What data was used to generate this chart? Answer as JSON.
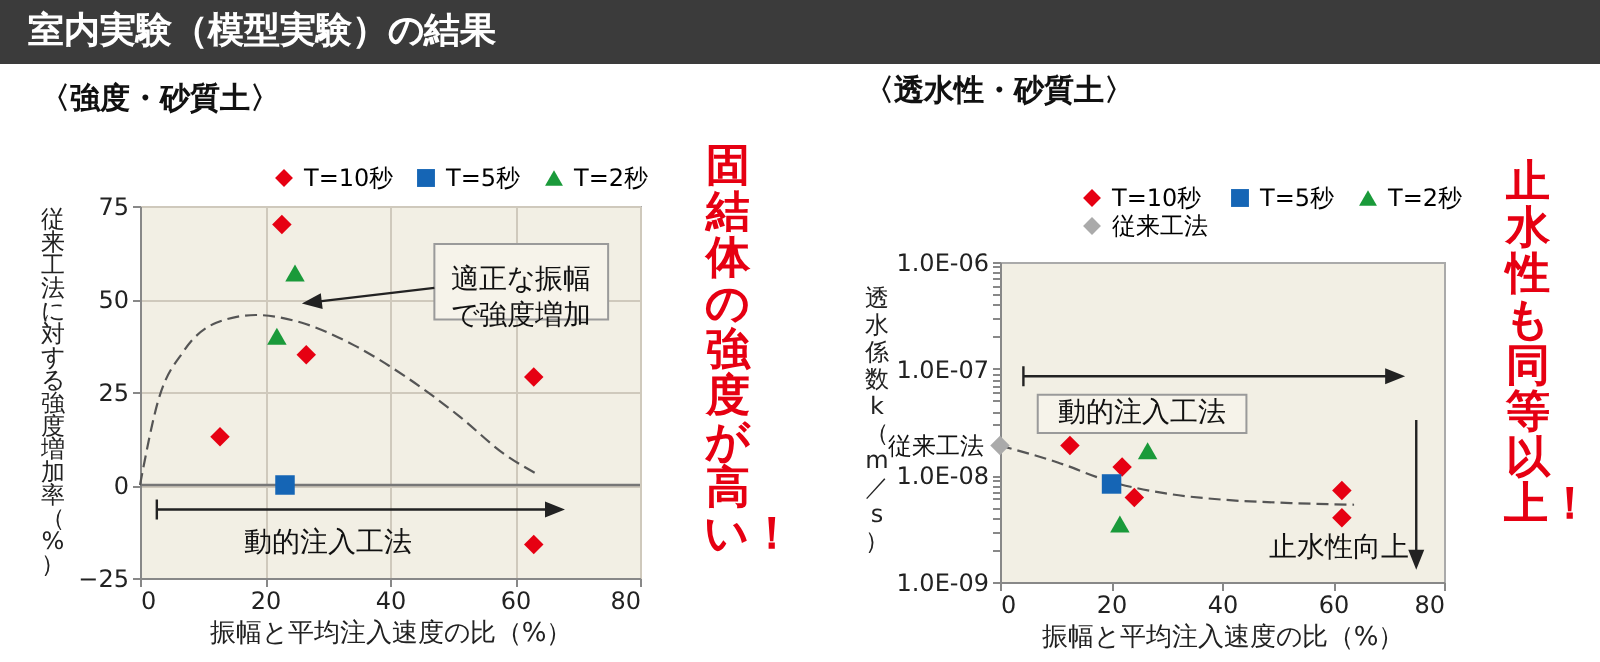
{
  "chart_data": [
    {
      "type": "scatter",
      "title": "室内実験（模型実験）の結果",
      "subtitle": "〈強度・砂質土〉",
      "xlabel": "振幅と平均注入速度の比（%）",
      "ylabel": "従来工法に対する強度増加率（%）",
      "xlim": [
        0,
        80
      ],
      "ylim": [
        -25,
        75
      ],
      "xticks": [
        0,
        20,
        40,
        60,
        80
      ],
      "yticks": [
        -25,
        0,
        25,
        50,
        75
      ],
      "grid": true,
      "legend": "top right",
      "series": [
        {
          "name": "T=10秒",
          "color": "#e60012",
          "marker": "diamond",
          "x": [
            12.8,
            22.7,
            26.6,
            63,
            63
          ],
          "values": [
            13,
            70,
            35,
            29,
            -16
          ]
        },
        {
          "name": "T=5秒",
          "color": "#1565b5",
          "marker": "square",
          "x": [
            23.2
          ],
          "values": [
            0
          ]
        },
        {
          "name": "T=2秒",
          "color": "#1a9a3a",
          "marker": "triangle",
          "x": [
            21.9,
            24.8
          ],
          "values": [
            40,
            57
          ]
        },
        {
          "type": "line",
          "color": "#555555",
          "marker": "none",
          "line_style": "dashed",
          "x": [
            0,
            2.8,
            7,
            12.2,
            18.5,
            25.9,
            34.2,
            42.6,
            51,
            58.3,
            63.9
          ],
          "values": [
            0,
            22,
            36,
            43.6,
            45.7,
            43.6,
            37.6,
            29,
            18.6,
            8.3,
            2.6
          ]
        }
      ],
      "ref_lines": [
        {
          "axis": "y",
          "value": 0,
          "color": "#777777"
        }
      ],
      "annotations": [
        "適正な振幅で強度増加",
        "動的注入工法",
        "固結体の強度が高い！"
      ]
    },
    {
      "type": "scatter",
      "subtitle": "〈透水性・砂質土〉",
      "xlabel": "振幅と平均注入速度の比（%）",
      "ylabel": "透水係数k（m／s）",
      "log": "y",
      "xlim": [
        0,
        80
      ],
      "ylim": [
        1e-09,
        1e-06
      ],
      "xticks": [
        0,
        20,
        40,
        60,
        80
      ],
      "yticks": [
        {
          "value": 1e-09,
          "label": "1.0E-09"
        },
        {
          "value": 2e-09,
          "label": null
        },
        {
          "value": 3e-09,
          "label": null
        },
        {
          "value": 4e-09,
          "label": null
        },
        {
          "value": 5e-09,
          "label": null
        },
        {
          "value": 6e-09,
          "label": null
        },
        {
          "value": 7e-09,
          "label": null
        },
        {
          "value": 8e-09,
          "label": null
        },
        {
          "value": 9e-09,
          "label": null
        },
        {
          "value": 1e-08,
          "label": "1.0E-08"
        },
        {
          "value": 2e-08,
          "label": null
        },
        {
          "value": 3e-08,
          "label": null
        },
        {
          "value": 4e-08,
          "label": null
        },
        {
          "value": 5e-08,
          "label": null
        },
        {
          "value": 6e-08,
          "label": null
        },
        {
          "value": 7e-08,
          "label": null
        },
        {
          "value": 8e-08,
          "label": null
        },
        {
          "value": 9e-08,
          "label": null
        },
        {
          "value": 1e-07,
          "label": "1.0E-07"
        },
        {
          "value": 2e-07,
          "label": null
        },
        {
          "value": 3e-07,
          "label": null
        },
        {
          "value": 4e-07,
          "label": null
        },
        {
          "value": 5e-07,
          "label": null
        },
        {
          "value": 6e-07,
          "label": null
        },
        {
          "value": 7e-07,
          "label": null
        },
        {
          "value": 8e-07,
          "label": null
        },
        {
          "value": 9e-07,
          "label": null
        },
        {
          "value": 1e-06,
          "label": "1.0E-06"
        }
      ],
      "legend": "top right",
      "series": [
        {
          "name": "T=10秒",
          "color": "#e60012",
          "marker": "diamond",
          "x": [
            12.6,
            22,
            24.2,
            61.6,
            61.6
          ],
          "values": [
            1.9e-08,
            1.2e-08,
            6.2e-09,
            7.2e-09,
            4e-09
          ]
        },
        {
          "name": "T=5秒",
          "color": "#1565b5",
          "marker": "square",
          "x": [
            20.1
          ],
          "values": [
            8.3e-09
          ]
        },
        {
          "name": "T=2秒",
          "color": "#1a9a3a",
          "marker": "triangle",
          "x": [
            26.6,
            21.6
          ],
          "values": [
            1.7e-08,
            3.5e-09
          ]
        },
        {
          "name": "従来工法",
          "color": "#aaaaaa",
          "marker": "diamond",
          "x": [
            0
          ],
          "values": [
            1.9e-08
          ]
        },
        {
          "type": "line",
          "color": "#555555",
          "marker": "none",
          "line_style": "dashed",
          "x": [
            0,
            10.4,
            20,
            29.6,
            40.4,
            52.4,
            63.8
          ],
          "values": [
            1.9e-08,
            1.32e-08,
            8.7e-09,
            6.8e-09,
            5.9e-09,
            5.5e-09,
            5.3e-09
          ]
        }
      ],
      "annotations": [
        {
          "text": "従来工法",
          "x": 0,
          "y": 1.9e-08
        },
        "動的注入工法",
        "止水性向上",
        "止水性も同等以上！"
      ]
    }
  ]
}
